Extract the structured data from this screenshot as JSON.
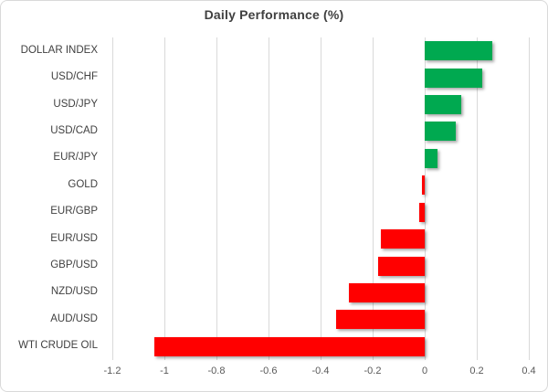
{
  "chart_data": {
    "type": "bar",
    "orientation": "horizontal",
    "title": "Daily Performance (%)",
    "categories": [
      "DOLLAR INDEX",
      "USD/CHF",
      "USD/JPY",
      "USD/CAD",
      "EUR/JPY",
      "GOLD",
      "EUR/GBP",
      "EUR/USD",
      "GBP/USD",
      "NZD/USD",
      "AUD/USD",
      "WTI CRUDE OIL"
    ],
    "values": [
      0.26,
      0.22,
      0.14,
      0.12,
      0.05,
      -0.01,
      -0.02,
      -0.17,
      -0.18,
      -0.29,
      -0.34,
      -1.04
    ],
    "xlabel": "",
    "ylabel": "",
    "xlim": [
      -1.2,
      0.4
    ],
    "tick_values": [
      -1.2,
      -1,
      -0.8,
      -0.6,
      -0.4,
      -0.2,
      0,
      0.2,
      0.4
    ],
    "tick_labels": [
      "-1.2",
      "-1",
      "-0.8",
      "-0.6",
      "-0.4",
      "-0.2",
      "0",
      "0.2",
      "0.4"
    ],
    "grid": true,
    "legend": false,
    "colors": {
      "positive": "#00A950",
      "negative": "#FF0000",
      "gridline": "#D9D9D9",
      "title_text": "#404040",
      "label_text": "#404040",
      "tick_text": "#595959",
      "border": "#D9D9D9"
    }
  }
}
